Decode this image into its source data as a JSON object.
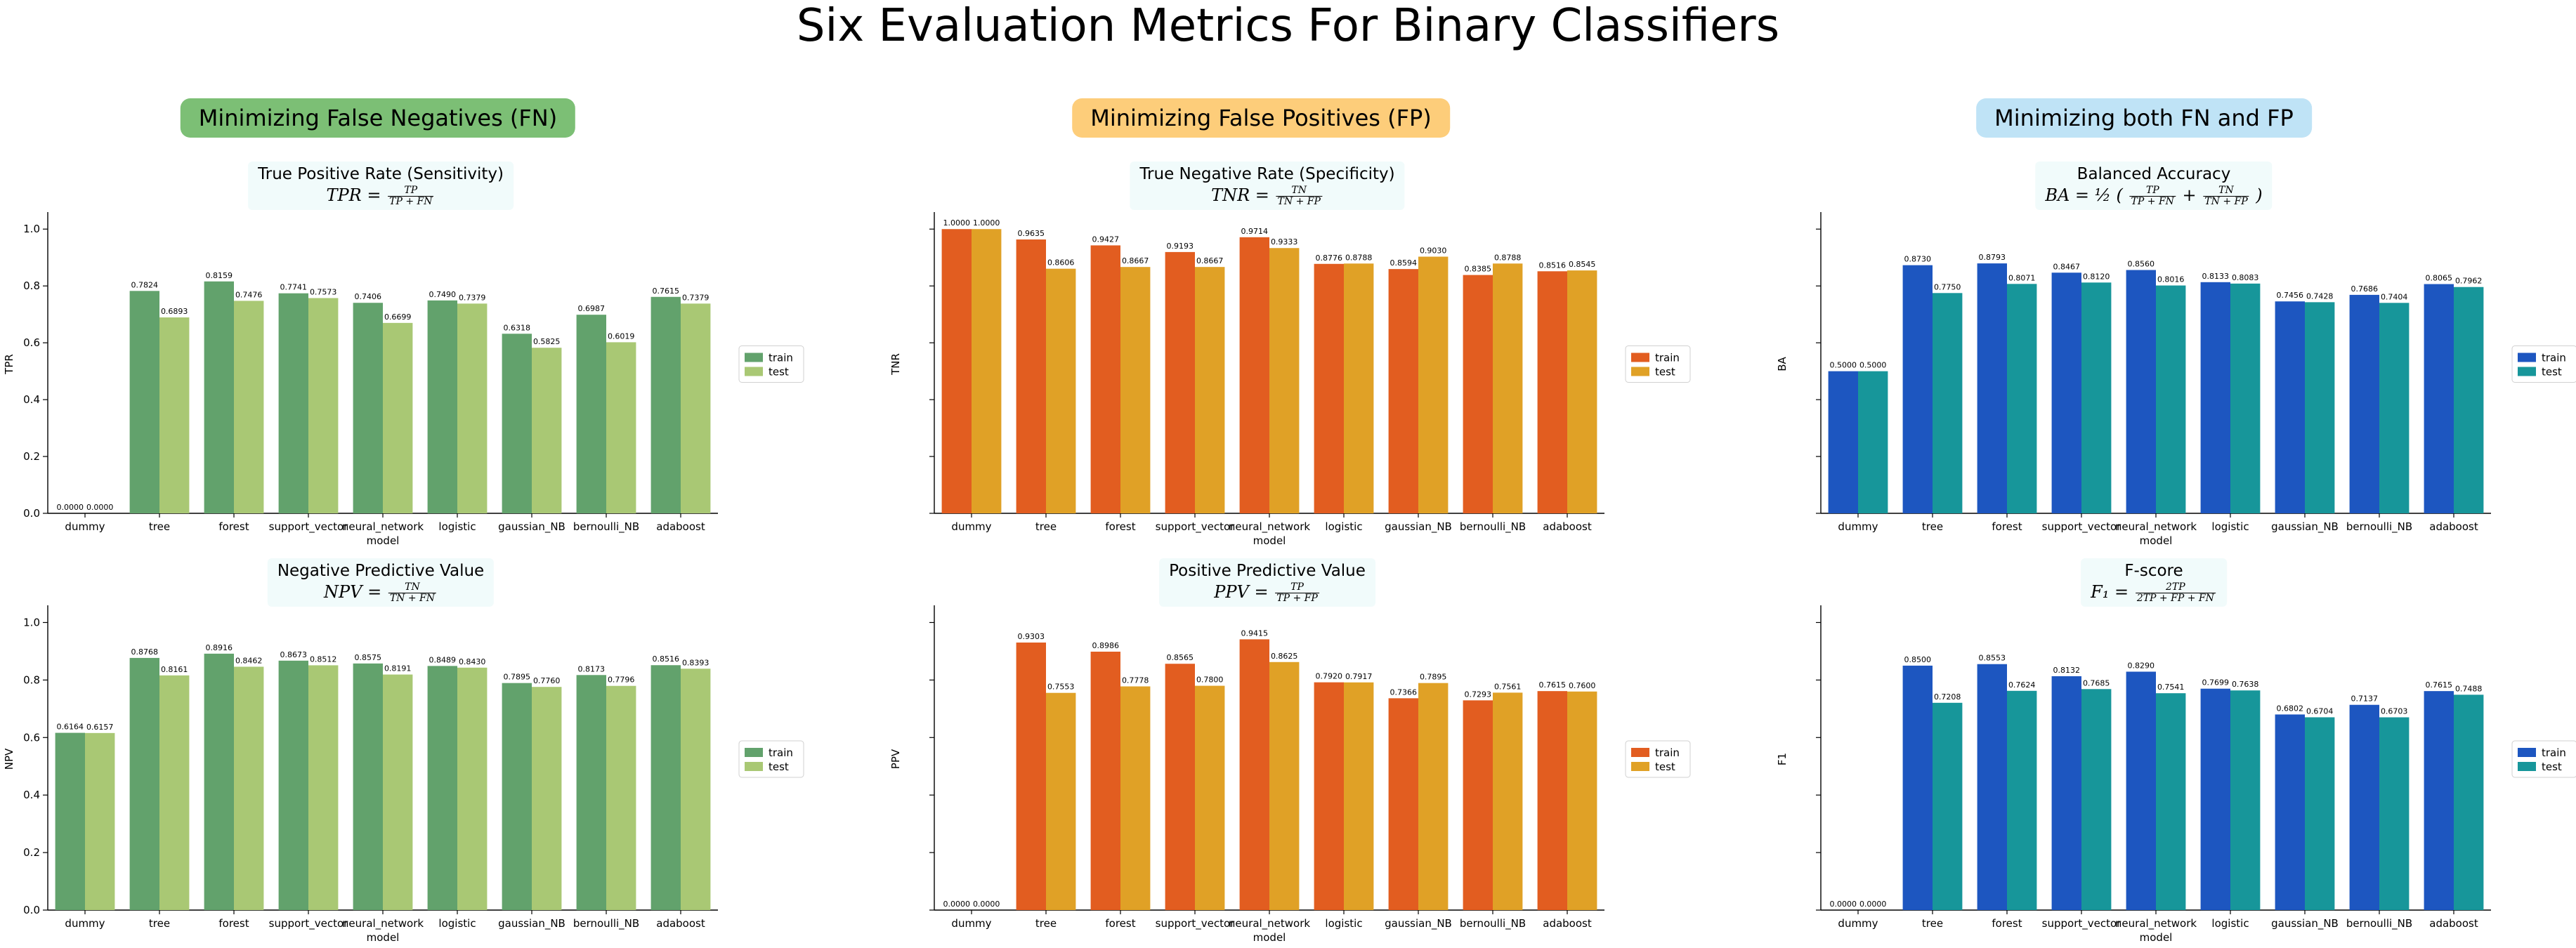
{
  "title": "Six Evaluation Metrics For Binary Classifiers",
  "column_headers": [
    {
      "label": "Minimizing False Negatives (FN)",
      "color": "#7cbf75"
    },
    {
      "label": "Minimizing False Positives (FP)",
      "color": "#fdcd7a"
    },
    {
      "label": "Minimizing both FN and FP",
      "color": "#bfe3f6"
    }
  ],
  "chart_data": [
    {
      "type": "bar",
      "title": "True Positive Rate (Sensitivity)",
      "formula_lhs": "TPR =",
      "formula_num": "TP",
      "formula_den": "TP + FN",
      "xlabel": "model",
      "ylabel": "TPR",
      "ylim": [
        0,
        1.05
      ],
      "show_y_ticks": true,
      "legend_position": "right",
      "categories": [
        "dummy",
        "tree",
        "forest",
        "support_vector",
        "neural_network",
        "logistic",
        "gaussian_NB",
        "bernoulli_NB",
        "adaboost"
      ],
      "series": [
        {
          "name": "train",
          "color": "#62a26c",
          "values": [
            0.0,
            0.7824,
            0.8159,
            0.7741,
            0.7406,
            0.749,
            0.6318,
            0.6987,
            0.7615
          ],
          "labels": [
            "0.0000",
            "0.7824",
            "0.8159",
            "0.7741",
            "0.7406",
            "0.7490",
            "0.6318",
            "0.6987",
            "0.7615"
          ]
        },
        {
          "name": "test",
          "color": "#a9c874",
          "values": [
            0.0,
            0.6893,
            0.7476,
            0.7573,
            0.6699,
            0.7379,
            0.5825,
            0.6019,
            0.7379
          ],
          "labels": [
            "0.0000",
            "0.6893",
            "0.7476",
            "0.7573",
            "0.6699",
            "0.7379",
            "0.5825",
            "0.6019",
            "0.7379"
          ]
        }
      ]
    },
    {
      "type": "bar",
      "title": "True Negative Rate (Specificity)",
      "formula_lhs": "TNR =",
      "formula_num": "TN",
      "formula_den": "TN + FP",
      "xlabel": "model",
      "ylabel": "TNR",
      "ylim": [
        0,
        1.05
      ],
      "show_y_ticks": false,
      "legend_position": "right",
      "categories": [
        "dummy",
        "tree",
        "forest",
        "support_vector",
        "neural_network",
        "logistic",
        "gaussian_NB",
        "bernoulli_NB",
        "adaboost"
      ],
      "series": [
        {
          "name": "train",
          "color": "#e25d20",
          "values": [
            1.0,
            0.9635,
            0.9427,
            0.9193,
            0.9714,
            0.8776,
            0.8594,
            0.8385,
            0.8516
          ],
          "labels": [
            "1.0000",
            "0.9635",
            "0.9427",
            "0.9193",
            "0.9714",
            "0.8776",
            "0.8594",
            "0.8385",
            "0.8516"
          ]
        },
        {
          "name": "test",
          "color": "#e0a126",
          "values": [
            1.0,
            0.8606,
            0.8667,
            0.8667,
            0.9333,
            0.8788,
            0.903,
            0.8788,
            0.8545
          ],
          "labels": [
            "1.0000",
            "0.8606",
            "0.8667",
            "0.8667",
            "0.9333",
            "0.8788",
            "0.9030",
            "0.8788",
            "0.8545"
          ]
        }
      ]
    },
    {
      "type": "bar",
      "title": "Balanced Accuracy",
      "formula_lhs": "BA = ½ (",
      "formula_num": "TP",
      "formula_den": "TP + FN",
      "formula_mid": "+",
      "formula_num2": "TN",
      "formula_den2": "TN + FP",
      "formula_end": ")",
      "xlabel": "model",
      "ylabel": "BA",
      "ylim": [
        0,
        1.05
      ],
      "show_y_ticks": false,
      "legend_position": "right",
      "categories": [
        "dummy",
        "tree",
        "forest",
        "support_vector",
        "neural_network",
        "logistic",
        "gaussian_NB",
        "bernoulli_NB",
        "adaboost"
      ],
      "series": [
        {
          "name": "train",
          "color": "#1d56c0",
          "values": [
            0.5,
            0.873,
            0.8793,
            0.8467,
            0.856,
            0.8133,
            0.7456,
            0.7686,
            0.8065
          ],
          "labels": [
            "0.5000",
            "0.8730",
            "0.8793",
            "0.8467",
            "0.8560",
            "0.8133",
            "0.7456",
            "0.7686",
            "0.8065"
          ]
        },
        {
          "name": "test",
          "color": "#17969a",
          "values": [
            0.5,
            0.775,
            0.8071,
            0.812,
            0.8016,
            0.8083,
            0.7428,
            0.7404,
            0.7962
          ],
          "labels": [
            "0.5000",
            "0.7750",
            "0.8071",
            "0.8120",
            "0.8016",
            "0.8083",
            "0.7428",
            "0.7404",
            "0.7962"
          ]
        }
      ]
    },
    {
      "type": "bar",
      "title": "Negative Predictive Value",
      "formula_lhs": "NPV =",
      "formula_num": "TN",
      "formula_den": "TN + FN",
      "xlabel": "model",
      "ylabel": "NPV",
      "ylim": [
        0,
        1.05
      ],
      "show_y_ticks": true,
      "legend_position": "right",
      "categories": [
        "dummy",
        "tree",
        "forest",
        "support_vector",
        "neural_network",
        "logistic",
        "gaussian_NB",
        "bernoulli_NB",
        "adaboost"
      ],
      "series": [
        {
          "name": "train",
          "color": "#62a26c",
          "values": [
            0.6164,
            0.8768,
            0.8916,
            0.8673,
            0.8575,
            0.8489,
            0.7895,
            0.8173,
            0.8516
          ],
          "labels": [
            "0.6164",
            "0.8768",
            "0.8916",
            "0.8673",
            "0.8575",
            "0.8489",
            "0.7895",
            "0.8173",
            "0.8516"
          ]
        },
        {
          "name": "test",
          "color": "#a9c874",
          "values": [
            0.6157,
            0.8161,
            0.8462,
            0.8512,
            0.8191,
            0.843,
            0.776,
            0.7796,
            0.8393
          ],
          "labels": [
            "0.6157",
            "0.8161",
            "0.8462",
            "0.8512",
            "0.8191",
            "0.8430",
            "0.7760",
            "0.7796",
            "0.8393"
          ]
        }
      ]
    },
    {
      "type": "bar",
      "title": "Positive Predictive Value",
      "formula_lhs": "PPV =",
      "formula_num": "TP",
      "formula_den": "TP + FP",
      "xlabel": "model",
      "ylabel": "PPV",
      "ylim": [
        0,
        1.05
      ],
      "show_y_ticks": false,
      "legend_position": "right",
      "categories": [
        "dummy",
        "tree",
        "forest",
        "support_vector",
        "neural_network",
        "logistic",
        "gaussian_NB",
        "bernoulli_NB",
        "adaboost"
      ],
      "series": [
        {
          "name": "train",
          "color": "#e25d20",
          "values": [
            0.0,
            0.9303,
            0.8986,
            0.8565,
            0.9415,
            0.792,
            0.7366,
            0.7293,
            0.7615
          ],
          "labels": [
            "0.0000",
            "0.9303",
            "0.8986",
            "0.8565",
            "0.9415",
            "0.7920",
            "0.7366",
            "0.7293",
            "0.7615"
          ]
        },
        {
          "name": "test",
          "color": "#e0a126",
          "values": [
            0.0,
            0.7553,
            0.7778,
            0.78,
            0.8625,
            0.7917,
            0.7895,
            0.7561,
            0.76
          ],
          "labels": [
            "0.0000",
            "0.7553",
            "0.7778",
            "0.7800",
            "0.8625",
            "0.7917",
            "0.7895",
            "0.7561",
            "0.7600"
          ]
        }
      ]
    },
    {
      "type": "bar",
      "title": "F-score",
      "formula_lhs": "F₁ =",
      "formula_num": "2TP",
      "formula_den": "2TP + FP + FN",
      "xlabel": "model",
      "ylabel": "F1",
      "ylim": [
        0,
        1.05
      ],
      "show_y_ticks": false,
      "legend_position": "right",
      "categories": [
        "dummy",
        "tree",
        "forest",
        "support_vector",
        "neural_network",
        "logistic",
        "gaussian_NB",
        "bernoulli_NB",
        "adaboost"
      ],
      "series": [
        {
          "name": "train",
          "color": "#1d56c0",
          "values": [
            0.0,
            0.85,
            0.8553,
            0.8132,
            0.829,
            0.7699,
            0.6802,
            0.7137,
            0.7615
          ],
          "labels": [
            "0.0000",
            "0.8500",
            "0.8553",
            "0.8132",
            "0.8290",
            "0.7699",
            "0.6802",
            "0.7137",
            "0.7615"
          ]
        },
        {
          "name": "test",
          "color": "#17969a",
          "values": [
            0.0,
            0.7208,
            0.7624,
            0.7685,
            0.7541,
            0.7638,
            0.6704,
            0.6703,
            0.7488
          ],
          "labels": [
            "0.0000",
            "0.7208",
            "0.7624",
            "0.7685",
            "0.7541",
            "0.7638",
            "0.6704",
            "0.6703",
            "0.7488"
          ]
        }
      ]
    }
  ]
}
